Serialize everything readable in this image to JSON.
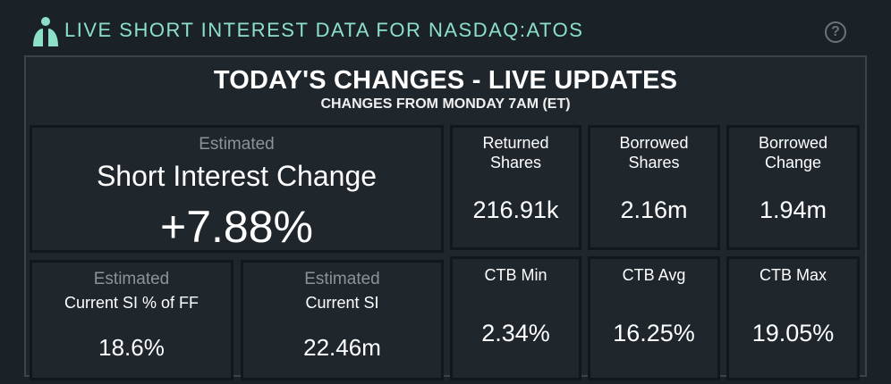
{
  "header": {
    "title": "LIVE SHORT INTEREST DATA FOR NASDAQ:ATOS",
    "help_label": "?"
  },
  "panel": {
    "title": "TODAY'S CHANGES - LIVE UPDATES",
    "subtitle": "CHANGES FROM MONDAY 7AM (ET)"
  },
  "main_card": {
    "estimated": "Estimated",
    "label": "Short Interest Change",
    "value": "+7.88%"
  },
  "si_ff_card": {
    "estimated": "Estimated",
    "label": "Current SI % of FF",
    "value": "18.6%"
  },
  "si_card": {
    "estimated": "Estimated",
    "label": "Current SI",
    "value": "22.46m"
  },
  "returned_card": {
    "label_line1": "Returned",
    "label_line2": "Shares",
    "value": "216.91k"
  },
  "borrowed_card": {
    "label_line1": "Borrowed",
    "label_line2": "Shares",
    "value": "2.16m"
  },
  "borrowed_change_card": {
    "label_line1": "Borrowed",
    "label_line2": "Change",
    "value": "1.94m"
  },
  "ctb_min_card": {
    "label": "CTB Min",
    "value": "2.34%"
  },
  "ctb_avg_card": {
    "label": "CTB Avg",
    "value": "16.25%"
  },
  "ctb_max_card": {
    "label": "CTB Max",
    "value": "19.05%"
  },
  "colors": {
    "accent": "#8ce0c8",
    "background": "#1b2227",
    "card_border": "#11171b",
    "muted_text": "#8d9297"
  },
  "icons": {
    "logo": "person-logo-icon",
    "help": "help-icon"
  }
}
